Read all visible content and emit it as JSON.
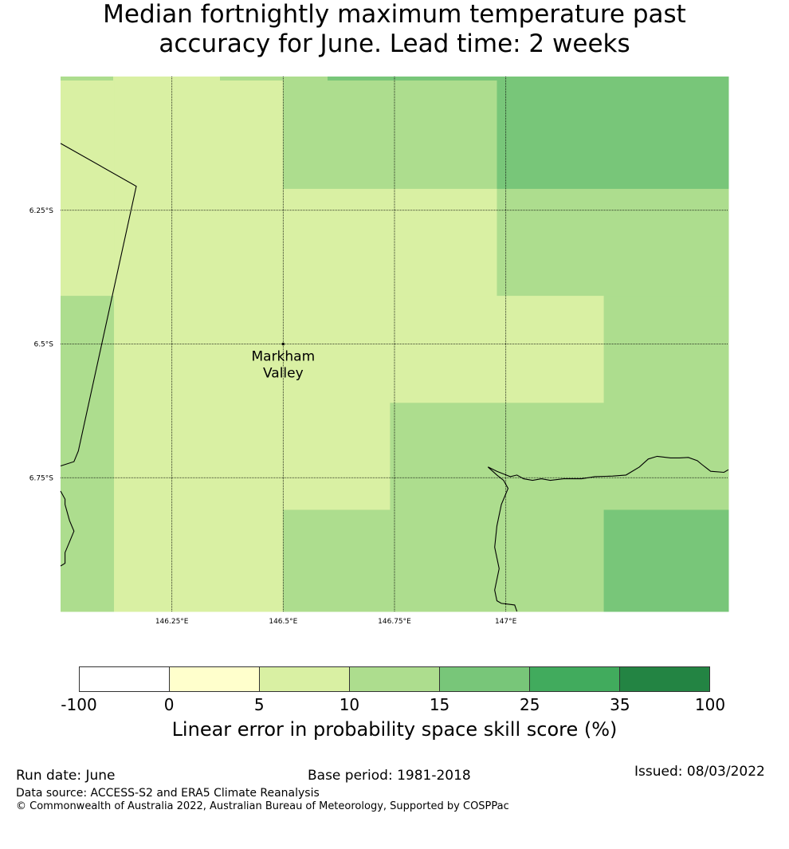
{
  "title": {
    "line1": "Median fortnightly maximum temperature past",
    "line2": "accuracy for June. Lead time: 2 weeks"
  },
  "map": {
    "lon_range": [
      146.0,
      147.5
    ],
    "lat_range": [
      -6.0,
      -7.0
    ],
    "longitude_gridlines": [
      146.25,
      146.5,
      146.75,
      147.0
    ],
    "latitude_gridlines": [
      -6.25,
      -6.5,
      -6.75
    ],
    "lon_tick_labels": [
      "146.25°E",
      "146.5°E",
      "146.75°E",
      "147°E"
    ],
    "lat_tick_labels": [
      "6.25°S",
      "6.5°S",
      "6.75°S"
    ],
    "place": {
      "name_line1": "Markham",
      "name_line2": "Valley",
      "lon": 146.5,
      "lat": -6.5
    },
    "grid_cells": [
      {
        "lon": [
          146.0,
          146.12
        ],
        "lat": [
          -6.0,
          -6.41
        ],
        "band": "5-10"
      },
      {
        "lon": [
          146.0,
          146.12
        ],
        "lat": [
          -6.41,
          -7.0
        ],
        "band": "10-15"
      },
      {
        "lon": [
          146.12,
          146.5
        ],
        "lat": [
          -6.0,
          -7.0
        ],
        "band": "5-10"
      },
      {
        "lon": [
          146.5,
          146.98
        ],
        "lat": [
          -6.0,
          -6.21
        ],
        "band": "10-15"
      },
      {
        "lon": [
          146.98,
          147.5
        ],
        "lat": [
          -6.0,
          -6.21
        ],
        "band": "15-25"
      },
      {
        "lon": [
          146.5,
          146.98
        ],
        "lat": [
          -6.21,
          -6.41
        ],
        "band": "5-10"
      },
      {
        "lon": [
          146.98,
          147.5
        ],
        "lat": [
          -6.21,
          -6.41
        ],
        "band": "10-15"
      },
      {
        "lon": [
          146.5,
          147.22
        ],
        "lat": [
          -6.41,
          -6.61
        ],
        "band": "5-10"
      },
      {
        "lon": [
          147.22,
          147.5
        ],
        "lat": [
          -6.41,
          -6.61
        ],
        "band": "10-15"
      },
      {
        "lon": [
          146.5,
          146.74
        ],
        "lat": [
          -6.61,
          -6.81
        ],
        "band": "5-10"
      },
      {
        "lon": [
          146.74,
          147.5
        ],
        "lat": [
          -6.61,
          -6.81
        ],
        "band": "10-15"
      },
      {
        "lon": [
          146.5,
          147.22
        ],
        "lat": [
          -6.81,
          -7.0
        ],
        "band": "10-15"
      },
      {
        "lon": [
          147.22,
          147.5
        ],
        "lat": [
          -6.81,
          -7.0
        ],
        "band": "15-25"
      }
    ],
    "coastlines": [
      [
        [
          146.0,
          -6.125
        ],
        [
          146.17,
          -6.205
        ],
        [
          146.04,
          -6.7
        ],
        [
          146.03,
          -6.72
        ],
        [
          146.0,
          -6.728
        ]
      ],
      [
        [
          146.0,
          -6.775
        ],
        [
          146.01,
          -6.79
        ],
        [
          146.01,
          -6.8
        ],
        [
          146.02,
          -6.83
        ],
        [
          146.03,
          -6.85
        ],
        [
          146.02,
          -6.87
        ],
        [
          146.01,
          -6.89
        ],
        [
          146.01,
          -6.91
        ],
        [
          146.0,
          -6.915
        ]
      ],
      [
        [
          147.5,
          -6.735
        ],
        [
          147.49,
          -6.74
        ],
        [
          147.46,
          -6.738
        ],
        [
          147.44,
          -6.725
        ],
        [
          147.43,
          -6.718
        ],
        [
          147.41,
          -6.712
        ],
        [
          147.39,
          -6.713
        ],
        [
          147.37,
          -6.713
        ],
        [
          147.34,
          -6.71
        ],
        [
          147.32,
          -6.715
        ],
        [
          147.3,
          -6.73
        ],
        [
          147.27,
          -6.745
        ],
        [
          147.24,
          -6.747
        ],
        [
          147.2,
          -6.748
        ],
        [
          147.17,
          -6.752
        ],
        [
          147.13,
          -6.752
        ],
        [
          147.1,
          -6.755
        ],
        [
          147.08,
          -6.752
        ],
        [
          147.06,
          -6.755
        ],
        [
          147.04,
          -6.752
        ],
        [
          147.025,
          -6.745
        ],
        [
          147.01,
          -6.748
        ],
        [
          146.98,
          -6.738
        ],
        [
          146.96,
          -6.73
        ],
        [
          146.98,
          -6.745
        ],
        [
          146.995,
          -6.755
        ],
        [
          147.005,
          -6.77
        ],
        [
          146.99,
          -6.8
        ],
        [
          146.98,
          -6.84
        ],
        [
          146.975,
          -6.88
        ],
        [
          146.98,
          -6.9
        ],
        [
          146.985,
          -6.92
        ],
        [
          146.98,
          -6.94
        ],
        [
          146.975,
          -6.96
        ],
        [
          146.98,
          -6.98
        ],
        [
          146.99,
          -6.985
        ],
        [
          147.02,
          -6.988
        ],
        [
          147.025,
          -7.0
        ]
      ]
    ]
  },
  "colorbar": {
    "bands": [
      {
        "key": "-100-0",
        "color": "#ffffff"
      },
      {
        "key": "0-5",
        "color": "#ffffcc"
      },
      {
        "key": "5-10",
        "color": "#d9f0a3"
      },
      {
        "key": "10-15",
        "color": "#addd8e"
      },
      {
        "key": "15-25",
        "color": "#78c679"
      },
      {
        "key": "25-35",
        "color": "#41ab5d"
      },
      {
        "key": "35-100",
        "color": "#238443"
      }
    ],
    "ticks": [
      "-100",
      "0",
      "5",
      "10",
      "15",
      "25",
      "35",
      "100"
    ],
    "label": "Linear error in probability space skill score (%)"
  },
  "footer": {
    "run_date": "Run date: June",
    "base_period": "Base period: 1981-2018",
    "issued": "Issued: 08/03/2022",
    "data_source": "Data source: ACCESS-S2 and ERA5 Climate Reanalysis",
    "copyright": "© Commonwealth of Australia 2022, Australian Bureau of Meteorology, Supported by COSPPac"
  }
}
